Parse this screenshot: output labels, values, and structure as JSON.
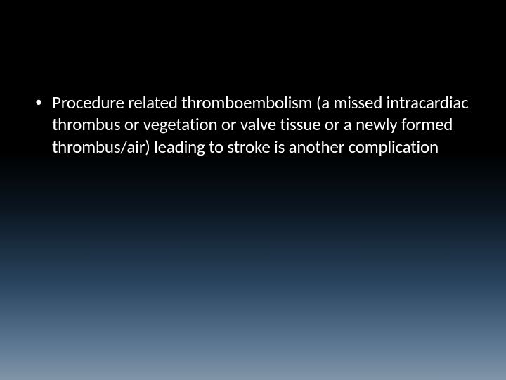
{
  "slide": {
    "background": {
      "gradient_top": "#000000",
      "gradient_bottom": "#8095a8"
    },
    "text_color": "#ffffff",
    "font_family": "Calibri",
    "bullets": [
      {
        "marker": "•",
        "text": "Procedure related thromboembolism (a missed intracardiac thrombus or vegetation or valve tissue or a newly formed thrombus/air) leading to stroke is another complication"
      }
    ]
  }
}
